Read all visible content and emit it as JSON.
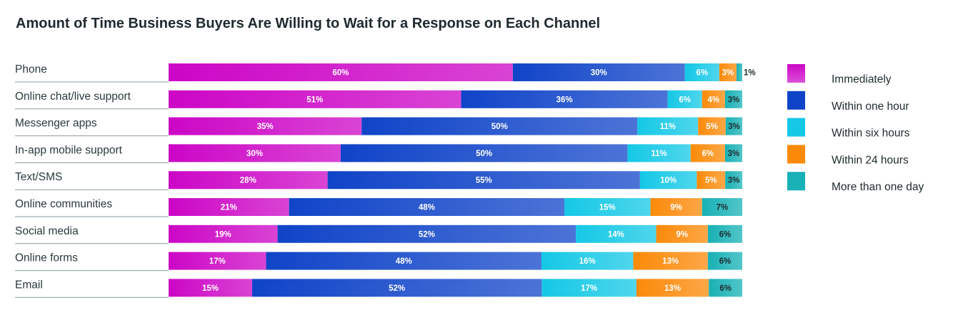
{
  "title": "Amount of Time Business Buyers Are Willing to Wait for a Response on Each Channel",
  "chart_data": {
    "type": "bar",
    "orientation": "horizontal",
    "stacked": true,
    "title": "Amount of Time Business Buyers Are Willing to Wait for a Response on Each Channel",
    "xlabel": "",
    "ylabel": "",
    "xlim": [
      0,
      100
    ],
    "grid": false,
    "legend_position": "right",
    "categories": [
      "Phone",
      "Online chat/live support",
      "Messenger apps",
      "In-app mobile support",
      "Text/SMS",
      "Online communities",
      "Social media",
      "Online forms",
      "Email"
    ],
    "series": [
      {
        "name": "Immediately",
        "color": "#cc06c6",
        "values": [
          60,
          51,
          35,
          30,
          28,
          21,
          19,
          17,
          15
        ]
      },
      {
        "name": "Within one hour",
        "color": "#1044c8",
        "values": [
          30,
          36,
          50,
          50,
          55,
          48,
          52,
          48,
          52
        ]
      },
      {
        "name": "Within six hours",
        "color": "#14c8e6",
        "values": [
          6,
          6,
          11,
          11,
          10,
          15,
          14,
          16,
          17
        ]
      },
      {
        "name": "Within 24 hours",
        "color": "#fb8a09",
        "values": [
          3,
          4,
          5,
          6,
          5,
          9,
          9,
          13,
          13
        ]
      },
      {
        "name": "More than one day",
        "color": "#18b1b5",
        "values": [
          1,
          3,
          3,
          3,
          3,
          7,
          6,
          6,
          6
        ]
      }
    ]
  }
}
